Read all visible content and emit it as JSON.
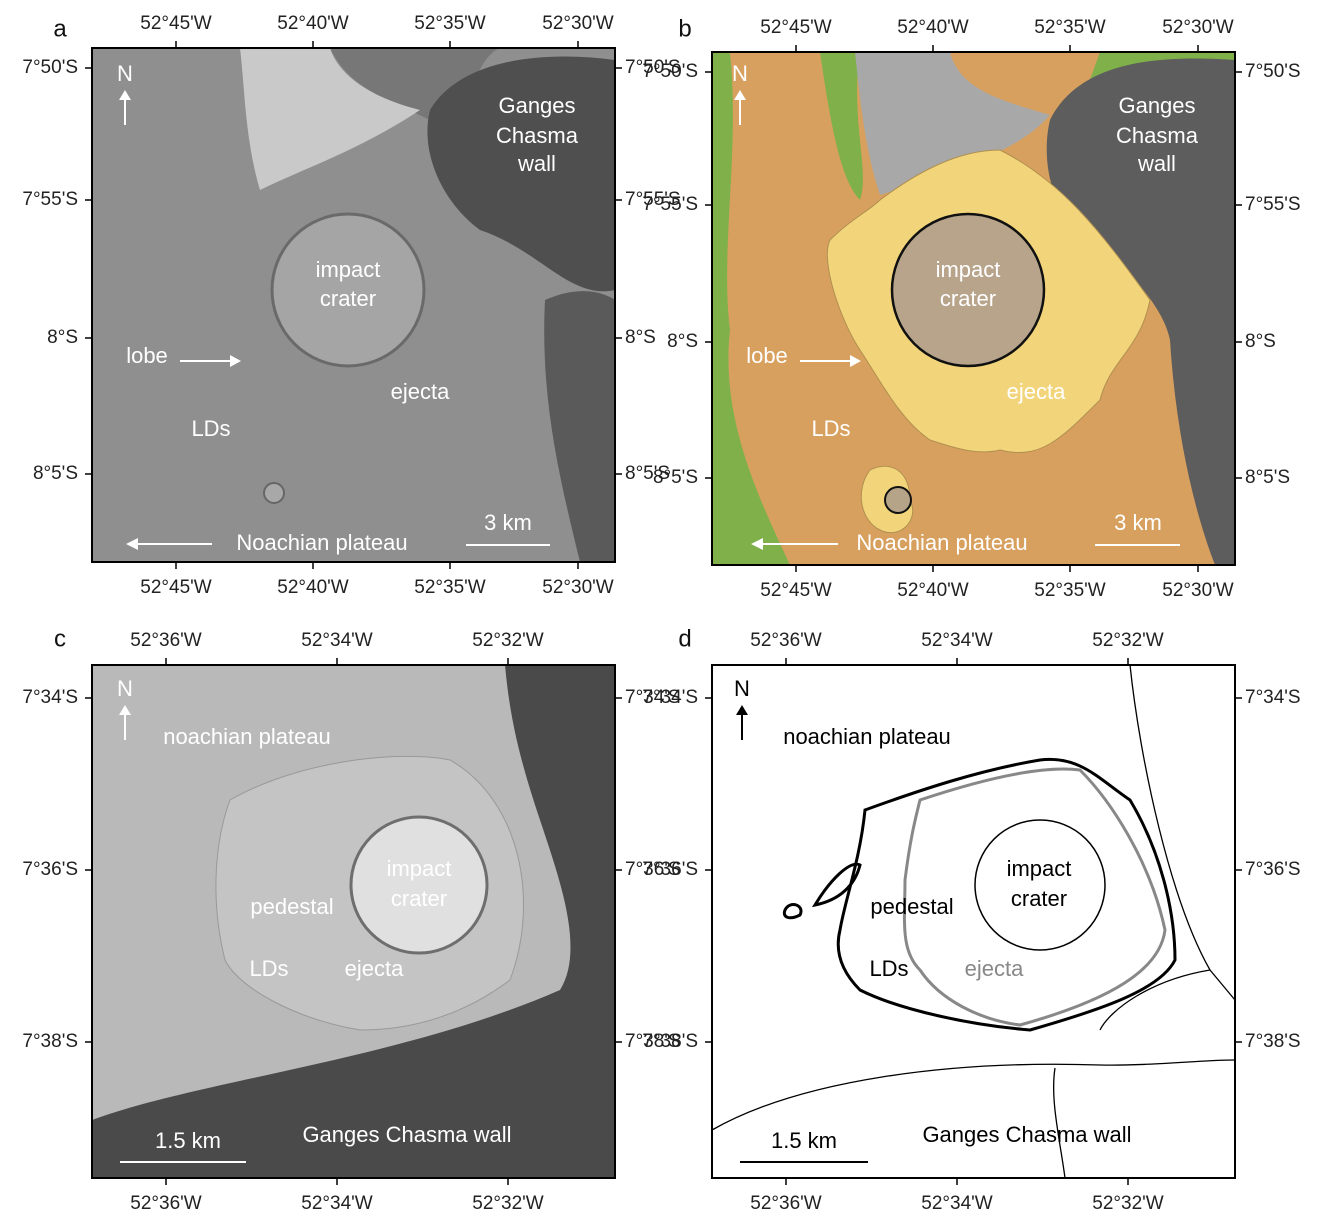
{
  "panels": [
    {
      "label": "a",
      "top_ticks": [
        "52°45'W",
        "52°40'W",
        "52°35'W",
        "52°30'W"
      ],
      "bottom_ticks": [
        "52°45'W",
        "52°40'W",
        "52°35'W",
        "52°30'W"
      ],
      "left_ticks": [
        "7°50'S",
        "7°55'S",
        "8°S",
        "8°5'S"
      ],
      "right_ticks": [
        "7°50'S",
        "7°55'S",
        "8°S",
        "8°5'S"
      ],
      "annotations": [
        "N",
        "Ganges",
        "Chasma",
        "wall",
        "impact",
        "crater",
        "lobe",
        "ejecta",
        "LDs",
        "Noachian plateau",
        "3 km"
      ]
    },
    {
      "label": "b",
      "top_ticks": [
        "52°45'W",
        "52°40'W",
        "52°35'W",
        "52°30'W"
      ],
      "bottom_ticks": [
        "52°45'W",
        "52°40'W",
        "52°35'W",
        "52°30'W"
      ],
      "left_ticks": [
        "7°50'S",
        "7°55'S",
        "8°S",
        "8°5'S"
      ],
      "right_ticks": [
        "7°50'S",
        "7°55'S",
        "8°S",
        "8°5'S"
      ],
      "annotations": [
        "N",
        "Ganges",
        "Chasma",
        "wall",
        "impact",
        "crater",
        "lobe",
        "ejecta",
        "LDs",
        "Noachian plateau",
        "3 km"
      ]
    },
    {
      "label": "c",
      "top_ticks": [
        "52°36'W",
        "52°34'W",
        "52°32'W"
      ],
      "bottom_ticks": [
        "52°36'W",
        "52°34'W",
        "52°32'W"
      ],
      "left_ticks": [
        "7°34'S",
        "7°36'S",
        "7°38'S"
      ],
      "right_ticks": [
        "7°34'S",
        "7°36'S",
        "7°38'S"
      ],
      "annotations": [
        "N",
        "noachian plateau",
        "impact",
        "crater",
        "pedestal",
        "LDs",
        "ejecta",
        "1.5 km",
        "Ganges Chasma wall"
      ]
    },
    {
      "label": "d",
      "top_ticks": [
        "52°36'W",
        "52°34'W",
        "52°32'W"
      ],
      "bottom_ticks": [
        "52°36'W",
        "52°34'W",
        "52°32'W"
      ],
      "left_ticks": [
        "7°34'S",
        "7°36'S",
        "7°38'S"
      ],
      "right_ticks": [
        "7°34'S",
        "7°36'S",
        "7°38'S"
      ],
      "annotations": [
        "N",
        "noachian plateau",
        "impact",
        "crater",
        "pedestal",
        "LDs",
        "ejecta",
        "1.5 km",
        "Ganges Chasma wall"
      ]
    }
  ]
}
